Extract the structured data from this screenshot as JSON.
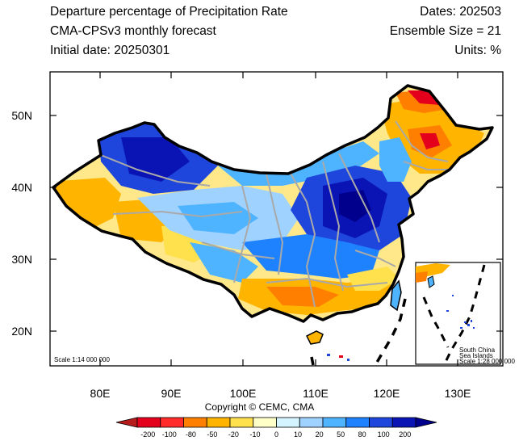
{
  "header": {
    "title": "Departure percentage of Precipitation Rate",
    "subtitle": "CMA-CPSv3 monthly forecast",
    "initial_date": "Initial date: 20250301",
    "dates": "Dates: 202503",
    "ensemble": "Ensemble Size = 21",
    "units": "Units: %"
  },
  "map": {
    "lon_ticks": [
      "80E",
      "90E",
      "100E",
      "110E",
      "120E",
      "130E"
    ],
    "lat_ticks": [
      "50N",
      "40N",
      "30N",
      "20N"
    ],
    "scale_main": "Scale 1:14 000 000",
    "inset_label_1": "South China",
    "inset_label_2": "Sea Islands",
    "inset_scale": "Scale 1:28 000 000"
  },
  "copyright": "Copyright © CEMC, CMA",
  "colorbar": {
    "labels": [
      "-200",
      "-100",
      "-80",
      "-50",
      "-20",
      "-10",
      "0",
      "10",
      "20",
      "50",
      "80",
      "100",
      "200"
    ],
    "colors": [
      "#b71c1c",
      "#e4001c",
      "#ff2a2a",
      "#ff7f00",
      "#ffb400",
      "#ffe04d",
      "#ffffc8",
      "#d4f4ff",
      "#a0d2ff",
      "#4fb4ff",
      "#1e82ff",
      "#1e46dc",
      "#0a14b4",
      "#00008c"
    ]
  }
}
